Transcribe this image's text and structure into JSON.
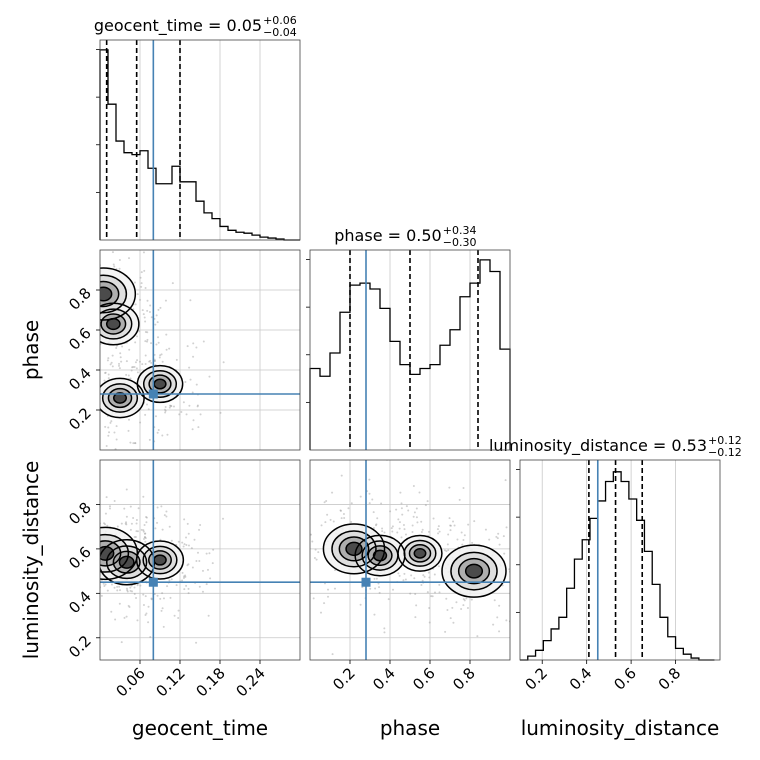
{
  "chart_data": {
    "type": "corner",
    "parameters": [
      "geocent_time",
      "phase",
      "luminosity_distance"
    ],
    "axis_labels": {
      "geocent_time": "geocent_time",
      "phase": "phase",
      "luminosity_distance": "luminosity_distance"
    },
    "titles": [
      {
        "param": "geocent_time",
        "text": "geocent_time = 0.05",
        "plus": "+0.06",
        "minus": "−0.04"
      },
      {
        "param": "phase",
        "text": "phase = 0.50",
        "plus": "+0.34",
        "minus": "−0.30"
      },
      {
        "param": "luminosity_distance",
        "text": "luminosity_distance = 0.53",
        "plus": "+0.12",
        "minus": "−0.12"
      }
    ],
    "ranges": {
      "geocent_time": [
        0.0,
        0.3
      ],
      "phase": [
        0.0,
        1.0
      ],
      "luminosity_distance": [
        0.1,
        1.0
      ]
    },
    "ticks": {
      "geocent_time": [
        0.06,
        0.12,
        0.18,
        0.24
      ],
      "phase": [
        0.2,
        0.4,
        0.6,
        0.8
      ],
      "luminosity_distance": [
        0.2,
        0.4,
        0.6,
        0.8
      ]
    },
    "tick_labels": {
      "geocent_time": [
        "0.06",
        "0.12",
        "0.18",
        "0.24"
      ],
      "phase": [
        "0.2",
        "0.4",
        "0.6",
        "0.8"
      ],
      "luminosity_distance": [
        "0.2",
        "0.4",
        "0.6",
        "0.8"
      ]
    },
    "truths": {
      "geocent_time": 0.08,
      "phase": 0.28,
      "luminosity_distance": 0.45
    },
    "quantiles": {
      "geocent_time": [
        0.01,
        0.055,
        0.12
      ],
      "phase": [
        0.2,
        0.5,
        0.84
      ],
      "luminosity_distance": [
        0.41,
        0.53,
        0.65
      ]
    },
    "histograms": {
      "geocent_time": {
        "edges": [
          0.0,
          0.012,
          0.024,
          0.036,
          0.048,
          0.06,
          0.072,
          0.084,
          0.096,
          0.108,
          0.12,
          0.132,
          0.144,
          0.156,
          0.168,
          0.18,
          0.192,
          0.204,
          0.216,
          0.228,
          0.24,
          0.252,
          0.264,
          0.276,
          0.288,
          0.3
        ],
        "counts": [
          0.98,
          0.7,
          0.51,
          0.45,
          0.44,
          0.46,
          0.37,
          0.29,
          0.29,
          0.38,
          0.3,
          0.3,
          0.2,
          0.14,
          0.11,
          0.07,
          0.05,
          0.04,
          0.035,
          0.025,
          0.015,
          0.01,
          0.005,
          0.0,
          0.0
        ]
      },
      "phase": {
        "edges": [
          0.0,
          0.05,
          0.1,
          0.15,
          0.2,
          0.25,
          0.3,
          0.35,
          0.4,
          0.45,
          0.5,
          0.55,
          0.6,
          0.65,
          0.7,
          0.75,
          0.8,
          0.85,
          0.9,
          0.95,
          1.0
        ],
        "counts": [
          0.42,
          0.38,
          0.5,
          0.71,
          0.85,
          0.86,
          0.83,
          0.73,
          0.56,
          0.44,
          0.39,
          0.42,
          0.44,
          0.54,
          0.62,
          0.79,
          0.86,
          0.98,
          0.92,
          0.52
        ]
      },
      "luminosity_distance": {
        "edges": [
          0.1,
          0.135,
          0.17,
          0.205,
          0.24,
          0.275,
          0.31,
          0.345,
          0.38,
          0.415,
          0.45,
          0.485,
          0.52,
          0.555,
          0.59,
          0.625,
          0.66,
          0.695,
          0.73,
          0.765,
          0.8,
          0.835,
          0.87,
          0.905,
          0.94,
          0.975
        ],
        "counts": [
          0.0,
          0.02,
          0.05,
          0.1,
          0.16,
          0.22,
          0.37,
          0.52,
          0.62,
          0.73,
          0.82,
          0.92,
          0.97,
          0.92,
          0.83,
          0.72,
          0.56,
          0.39,
          0.22,
          0.12,
          0.06,
          0.03,
          0.01,
          0.0,
          0.0
        ]
      }
    },
    "density_peaks": {
      "phase_vs_geocent_time": [
        {
          "x": 0.005,
          "y": 0.78,
          "weight": 1.0
        },
        {
          "x": 0.02,
          "y": 0.63,
          "weight": 0.55
        },
        {
          "x": 0.03,
          "y": 0.26,
          "weight": 0.45
        },
        {
          "x": 0.09,
          "y": 0.33,
          "weight": 0.35
        }
      ],
      "luminosity_distance_vs_geocent_time": [
        {
          "x": 0.008,
          "y": 0.58,
          "weight": 1.0
        },
        {
          "x": 0.04,
          "y": 0.54,
          "weight": 0.7
        },
        {
          "x": 0.09,
          "y": 0.55,
          "weight": 0.4
        }
      ],
      "luminosity_distance_vs_phase": [
        {
          "x": 0.22,
          "y": 0.6,
          "weight": 0.9
        },
        {
          "x": 0.35,
          "y": 0.57,
          "weight": 0.5
        },
        {
          "x": 0.55,
          "y": 0.58,
          "weight": 0.3
        },
        {
          "x": 0.82,
          "y": 0.5,
          "weight": 1.0
        }
      ]
    },
    "colors": {
      "truth": "#4682b4",
      "hist": "#000000",
      "quantile": "#000000",
      "grid": "#c8c8c8",
      "points": "#9a9a9a"
    },
    "grid": true
  }
}
